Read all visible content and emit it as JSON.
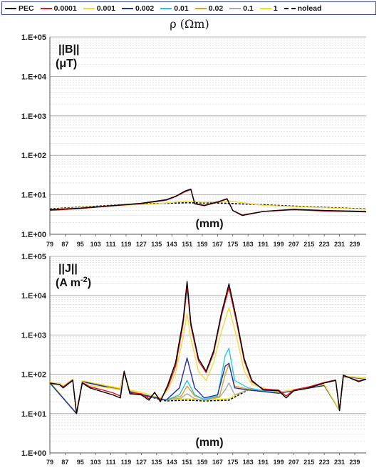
{
  "legend": {
    "entries": [
      {
        "label": "PEC",
        "color": "#000000",
        "dash": false
      },
      {
        "label": "0.0001",
        "color": "#e8101f",
        "dash": false
      },
      {
        "label": "0.001",
        "color": "#f2dc3a",
        "dash": false
      },
      {
        "label": "0.002",
        "color": "#1f2db0",
        "dash": false
      },
      {
        "label": "0.01",
        "color": "#27c6e8",
        "dash": false
      },
      {
        "label": "0.02",
        "color": "#e0a01c",
        "dash": false
      },
      {
        "label": "0.1",
        "color": "#a8a8a8",
        "dash": false
      },
      {
        "label": "1",
        "color": "#f4e400",
        "dash": false
      },
      {
        "label": "nolead",
        "color": "#000000",
        "dash": true
      }
    ],
    "title": "ρ (Ωm)"
  },
  "chart_data": [
    {
      "type": "line",
      "ylabel_line1": "||B||",
      "ylabel_line2": "(μT)",
      "xlabel": "(mm)",
      "yscale": "log",
      "ylim": [
        1,
        100000
      ],
      "ytick_labels": [
        "1.E+00",
        "1.E+01",
        "1.E+02",
        "1.E+03",
        "1.E+04",
        "1.E+05"
      ],
      "xlim": [
        79,
        245
      ],
      "xtick_labels": [
        "79",
        "87",
        "95",
        "103",
        "111",
        "119",
        "127",
        "135",
        "143",
        "151",
        "159",
        "167",
        "175",
        "183",
        "191",
        "199",
        "207",
        "215",
        "223",
        "231",
        "239"
      ],
      "grid": true,
      "series": [
        {
          "name": "PEC",
          "x": [
            79,
            95,
            111,
            127,
            140,
            145,
            150,
            153,
            155,
            160,
            167,
            172,
            175,
            180,
            191,
            207,
            223,
            245
          ],
          "y": [
            4.2,
            4.6,
            5.3,
            6.1,
            7.5,
            9.2,
            12.5,
            14.0,
            6.0,
            5.4,
            6.6,
            8.0,
            4.0,
            3.0,
            3.8,
            4.3,
            4.0,
            3.8
          ]
        },
        {
          "name": "0.0001",
          "x": [
            79,
            95,
            111,
            127,
            140,
            145,
            150,
            153,
            155,
            160,
            167,
            172,
            175,
            180,
            191,
            207,
            223,
            245
          ],
          "y": [
            4.0,
            4.5,
            5.2,
            6.0,
            7.3,
            9.0,
            12.0,
            13.5,
            5.9,
            5.3,
            6.5,
            7.8,
            4.0,
            3.1,
            3.8,
            4.2,
            3.9,
            3.7
          ]
        },
        {
          "name": "0.001",
          "x": [
            79,
            111,
            135,
            151,
            159,
            175,
            191,
            223,
            245
          ],
          "y": [
            4.3,
            5.3,
            5.9,
            7.0,
            6.5,
            6.8,
            5.4,
            4.7,
            4.3
          ]
        },
        {
          "name": "nolead",
          "x": [
            79,
            111,
            135,
            151,
            167,
            191,
            223,
            245
          ],
          "y": [
            4.4,
            5.4,
            6.0,
            6.3,
            6.2,
            5.6,
            4.8,
            4.4
          ]
        }
      ]
    },
    {
      "type": "line",
      "ylabel_line1": "||J||",
      "ylabel_line2": "(A m",
      "ylabel_sup": "-2",
      "ylabel_end": ")",
      "xlabel": "(mm)",
      "yscale": "log",
      "ylim": [
        1,
        100000
      ],
      "ytick_labels": [
        "1.E+00",
        "1.E+01",
        "1.E+02",
        "1.E+03",
        "1.E+04",
        "1.E+05"
      ],
      "xlim": [
        79,
        245
      ],
      "xtick_labels": [
        "79",
        "87",
        "95",
        "103",
        "111",
        "119",
        "127",
        "135",
        "143",
        "151",
        "159",
        "167",
        "175",
        "183",
        "191",
        "199",
        "207",
        "215",
        "223",
        "231",
        "239"
      ],
      "grid": true,
      "series": [
        {
          "name": "PEC",
          "x": [
            79,
            84,
            86,
            91,
            93,
            96,
            100,
            105,
            112,
            116,
            118,
            121,
            127,
            131,
            134,
            137,
            141,
            145,
            149,
            151,
            153,
            157,
            161,
            165,
            169,
            173,
            177,
            181,
            185,
            191,
            199,
            203,
            207,
            215,
            223,
            229,
            231,
            233,
            241,
            245
          ],
          "y": [
            60,
            55,
            45,
            70,
            10,
            60,
            45,
            38,
            30,
            25,
            120,
            32,
            30,
            22,
            35,
            20,
            55,
            200,
            2500,
            23000,
            2000,
            250,
            120,
            400,
            3500,
            20000,
            2500,
            250,
            70,
            40,
            38,
            25,
            38,
            45,
            60,
            70,
            12,
            95,
            65,
            75
          ]
        },
        {
          "name": "0.0001",
          "x": [
            79,
            84,
            86,
            91,
            93,
            96,
            100,
            105,
            112,
            116,
            118,
            121,
            127,
            131,
            134,
            137,
            141,
            145,
            149,
            151,
            153,
            157,
            161,
            165,
            169,
            173,
            177,
            181,
            185,
            191,
            199,
            203,
            207,
            215,
            223,
            229,
            231,
            233,
            241,
            245
          ],
          "y": [
            58,
            55,
            48,
            72,
            10,
            62,
            48,
            42,
            34,
            28,
            115,
            34,
            32,
            24,
            34,
            22,
            48,
            160,
            2000,
            17000,
            1700,
            220,
            110,
            350,
            3000,
            16000,
            2100,
            220,
            65,
            42,
            40,
            28,
            40,
            48,
            62,
            72,
            12,
            92,
            68,
            75
          ]
        },
        {
          "name": "0.001",
          "x": [
            79,
            84,
            86,
            91,
            93,
            96,
            100,
            110,
            116,
            118,
            121,
            127,
            137,
            141,
            145,
            149,
            151,
            153,
            157,
            161,
            165,
            169,
            173,
            177,
            181,
            185,
            199,
            207,
            223,
            231,
            233,
            245
          ],
          "y": [
            62,
            60,
            50,
            75,
            10,
            65,
            52,
            45,
            40,
            110,
            40,
            35,
            25,
            40,
            110,
            900,
            3500,
            800,
            120,
            70,
            200,
            1200,
            5000,
            900,
            120,
            55,
            35,
            40,
            55,
            12,
            90,
            78
          ]
        },
        {
          "name": "0.002",
          "x": [
            79,
            93,
            96,
            116,
            118,
            121,
            140,
            147,
            151,
            155,
            160,
            167,
            171,
            173,
            176,
            183,
            199,
            223,
            231,
            233,
            245
          ],
          "y": [
            60,
            10,
            65,
            40,
            110,
            36,
            22,
            45,
            260,
            45,
            25,
            30,
            160,
            190,
            45,
            40,
            33,
            52,
            12,
            88,
            76
          ]
        },
        {
          "name": "0.01",
          "x": [
            79,
            93,
            96,
            116,
            118,
            121,
            140,
            147,
            151,
            155,
            160,
            167,
            171,
            173,
            176,
            183,
            199,
            223,
            231,
            233,
            245
          ],
          "y": [
            60,
            10,
            65,
            40,
            110,
            36,
            22,
            30,
            70,
            30,
            23,
            28,
            300,
            460,
            70,
            45,
            33,
            52,
            12,
            88,
            76
          ]
        },
        {
          "name": "0.02",
          "x": [
            79,
            93,
            96,
            116,
            118,
            121,
            140,
            148,
            151,
            155,
            160,
            168,
            171,
            173,
            176,
            183,
            199,
            223,
            231,
            233,
            245
          ],
          "y": [
            62,
            10,
            66,
            42,
            112,
            36,
            22,
            28,
            50,
            28,
            23,
            27,
            100,
            180,
            50,
            42,
            33,
            52,
            12,
            88,
            76
          ]
        },
        {
          "name": "0.1",
          "x": [
            79,
            93,
            96,
            116,
            118,
            121,
            140,
            148,
            151,
            155,
            160,
            168,
            171,
            173,
            176,
            183,
            199,
            223,
            231,
            233,
            245
          ],
          "y": [
            60,
            10,
            65,
            40,
            110,
            36,
            22,
            25,
            32,
            24,
            22,
            26,
            40,
            60,
            30,
            40,
            33,
            52,
            12,
            88,
            76
          ]
        },
        {
          "name": "1",
          "x": [
            79,
            93,
            96,
            116,
            118,
            121,
            140,
            151,
            160,
            173,
            183,
            199,
            223,
            231,
            233,
            245
          ],
          "y": [
            65,
            10,
            68,
            44,
            115,
            38,
            22,
            24,
            22,
            24,
            42,
            35,
            55,
            12,
            90,
            80
          ]
        },
        {
          "name": "nolead",
          "x": [
            79,
            93,
            96,
            116,
            118,
            121,
            140,
            151,
            160,
            173,
            183,
            199,
            223,
            231,
            233,
            245
          ],
          "y": [
            63,
            10,
            66,
            42,
            112,
            36,
            21,
            22,
            21,
            22,
            40,
            34,
            54,
            12,
            88,
            78
          ]
        }
      ]
    }
  ]
}
